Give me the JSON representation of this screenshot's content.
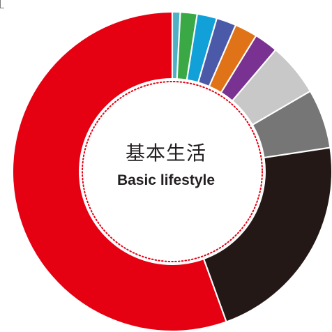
{
  "chart_data": {
    "type": "pie",
    "style": "donut",
    "title": "基本生活",
    "subtitle": "Basic lifestyle",
    "slices": [
      {
        "value": 0.8,
        "color": "#4fb0c6"
      },
      {
        "value": 1.7,
        "color": "#3aa845"
      },
      {
        "value": 2.0,
        "color": "#12a0d8"
      },
      {
        "value": 2.0,
        "color": "#4a5aa8"
      },
      {
        "value": 2.3,
        "color": "#e07317"
      },
      {
        "value": 2.4,
        "color": "#7a3292"
      },
      {
        "value": 5.4,
        "color": "#c8c8c8"
      },
      {
        "value": 6.0,
        "color": "#767676"
      },
      {
        "value": 21.9,
        "color": "#231815"
      },
      {
        "value": 55.5,
        "color": "#e50012"
      }
    ],
    "inner_border": "dotted",
    "inner_border_color": "#e50012"
  }
}
